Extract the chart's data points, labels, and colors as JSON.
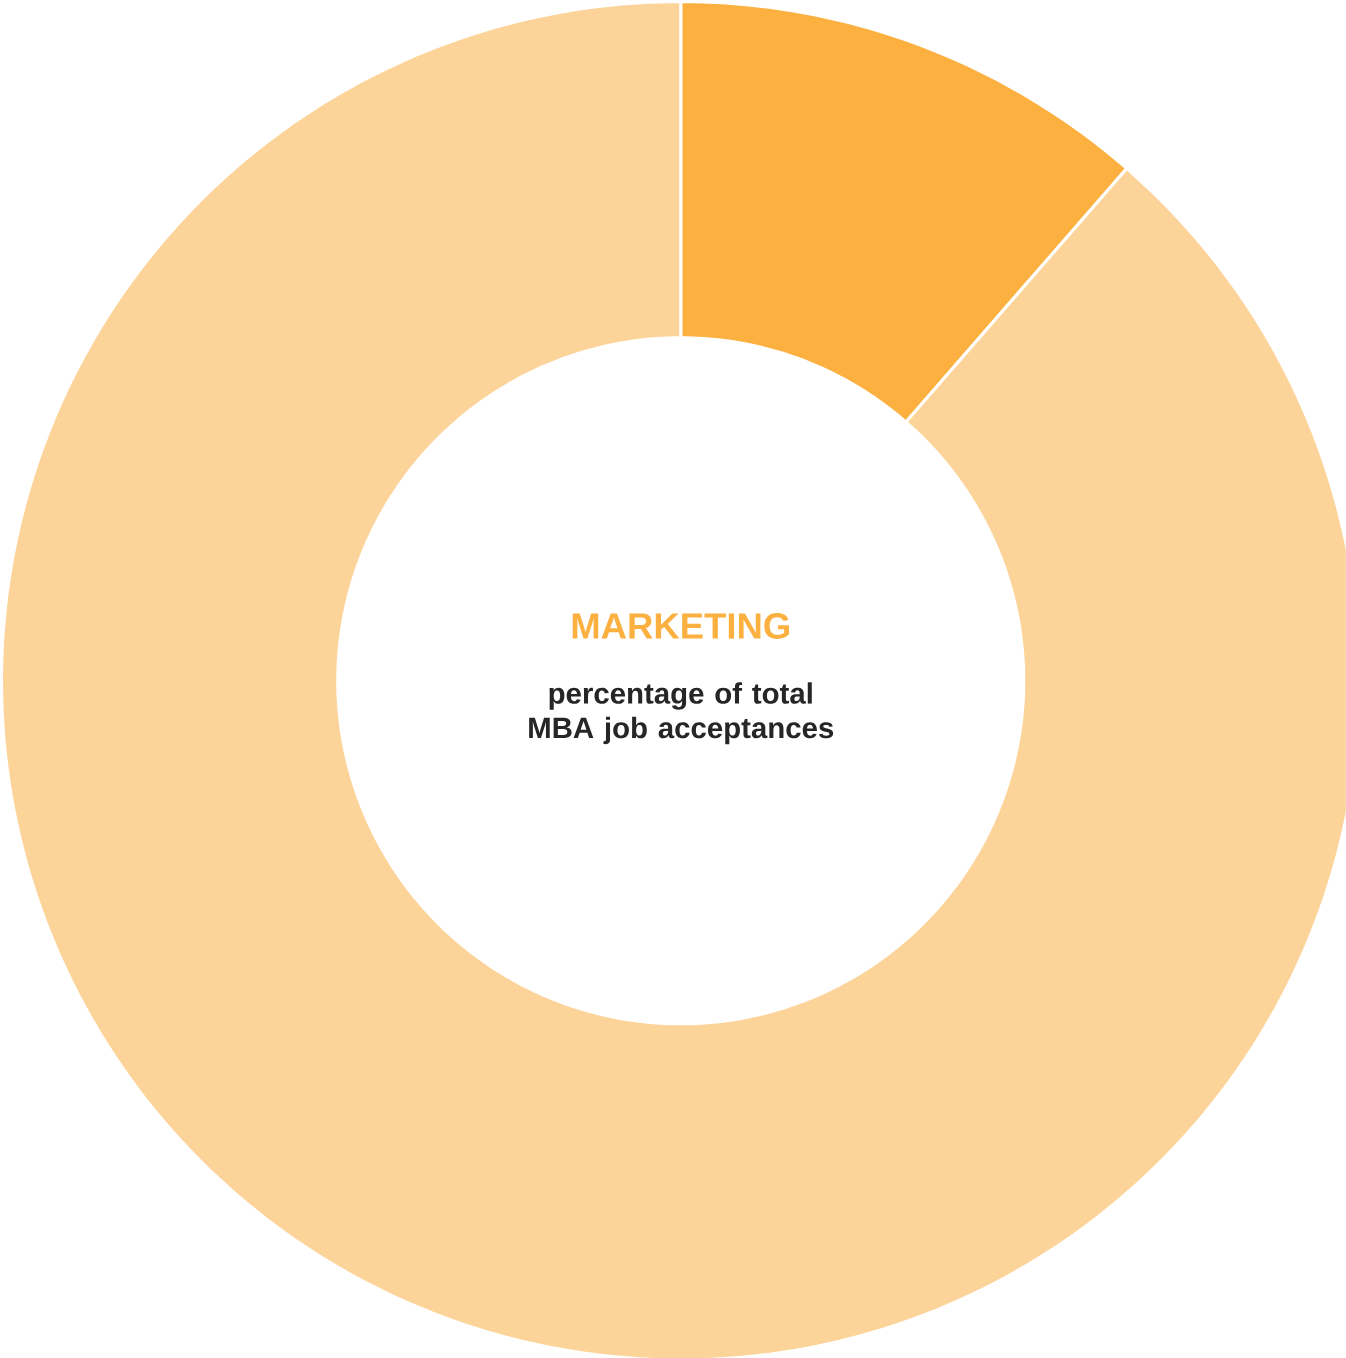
{
  "chart_data": {
    "type": "donut",
    "title": "MARKETING",
    "subtitle": "percentage of total MBA job acceptances",
    "categories": [
      null,
      null
    ],
    "values": [
      11.4,
      88.6
    ],
    "colors": [
      "#fbb040",
      "#fcd49a"
    ]
  }
}
